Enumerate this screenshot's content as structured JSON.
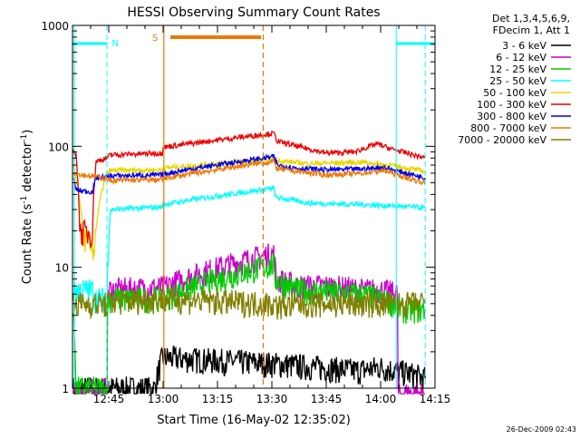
{
  "chart_data": {
    "type": "line",
    "title": "HESSI Observing Summary Count Rates",
    "xlabel": "Start Time (16-May-02 12:35:02)",
    "ylabel_parts": [
      "Count Rate (s",
      "-1",
      " detector",
      "-1",
      ")"
    ],
    "yscale": "log",
    "ylim": [
      1,
      1000
    ],
    "xlim_minutes": [
      0,
      100
    ],
    "x_ticks": [
      {
        "label": "12:45",
        "min": 10
      },
      {
        "label": "13:00",
        "min": 25
      },
      {
        "label": "13:15",
        "min": 40
      },
      {
        "label": "13:30",
        "min": 55
      },
      {
        "label": "13:45",
        "min": 70
      },
      {
        "label": "14:00",
        "min": 85
      },
      {
        "label": "14:15",
        "min": 100
      }
    ],
    "y_ticks": [
      {
        "label": "1",
        "value": 1
      },
      {
        "label": "10",
        "value": 10
      },
      {
        "label": "100",
        "value": 100
      },
      {
        "label": "1000",
        "value": 1000
      }
    ],
    "legend_header": [
      "Det 1,3,4,5,6,9,",
      "FDecim 1, Att 1"
    ],
    "legend_position": "right",
    "series": [
      {
        "name": "3 - 6 keV",
        "color": "#000000",
        "x": [
          0.2,
          5.0,
          9.5,
          22.7,
          24.8,
          55.5,
          79.0,
          84.5,
          94.0,
          97.3
        ],
        "y": [
          1.0,
          1.0,
          1.0,
          1.0,
          1.8,
          1.6,
          1.4,
          1.5,
          1.3,
          1.2
        ]
      },
      {
        "name": "6 - 12 keV",
        "color": "#cc00cc",
        "x": [
          0.2,
          9.5,
          9.8,
          24.8,
          55.5,
          56.2,
          62.0,
          70.0,
          80.0,
          85.0,
          89.6,
          89.8,
          97.3
        ],
        "y": [
          0.9,
          1.0,
          6.5,
          6.8,
          13.0,
          8.0,
          7.0,
          7.0,
          6.5,
          6.5,
          6.0,
          0.9,
          0.9
        ]
      },
      {
        "name": "12 - 25 keV",
        "color": "#00cc00",
        "x": [
          0.2,
          1.0,
          9.5,
          9.8,
          24.8,
          55.5,
          56.0,
          62.0,
          80.0,
          89.0,
          90.0,
          97.3
        ],
        "y": [
          4.0,
          1.0,
          1.0,
          5.5,
          5.5,
          10.5,
          8.0,
          6.5,
          6.0,
          5.0,
          4.5,
          4.5
        ]
      },
      {
        "name": "25 - 50 keV",
        "color": "#00ffff",
        "x": [
          0.2,
          5.5,
          6.0,
          9.5,
          10.5,
          24.8,
          25.0,
          55.5,
          56.0,
          65.0,
          80.0,
          90.0,
          97.3
        ],
        "y": [
          6.5,
          6.5,
          5.5,
          5.5,
          30.0,
          31.5,
          33.0,
          45.0,
          38.0,
          34.0,
          33.0,
          32.0,
          31.0
        ]
      },
      {
        "name": "50 - 100 keV",
        "color": "#e8d800",
        "x": [
          0.2,
          3.0,
          5.5,
          6.0,
          9.5,
          10.5,
          24.8,
          25.0,
          55.5,
          56.5,
          65.0,
          80.0,
          90.0,
          97.3
        ],
        "y": [
          68,
          18,
          14.5,
          14.5,
          60,
          63,
          64,
          66,
          78,
          76,
          72,
          74,
          68,
          62
        ]
      },
      {
        "name": "100 - 300 keV",
        "color": "#ee0000",
        "x": [
          0.2,
          1.0,
          2.0,
          5.5,
          6.5,
          9.5,
          10.5,
          24.8,
          25.0,
          55.5,
          56.5,
          62.0,
          70.0,
          78.0,
          84.0,
          88.0,
          94.0,
          97.3
        ],
        "y": [
          92,
          82,
          20,
          19,
          75,
          80,
          85,
          88,
          98,
          128,
          110,
          100,
          88,
          90,
          105,
          95,
          85,
          80
        ]
      },
      {
        "name": "300 - 800 keV",
        "color": "#0000ee",
        "x": [
          0.2,
          1.0,
          2.0,
          5.5,
          6.5,
          9.5,
          10.0,
          24.8,
          25.0,
          55.5,
          56.5,
          62.0,
          70.0,
          80.0,
          86.0,
          90.0,
          97.3
        ],
        "y": [
          55,
          44,
          43,
          42,
          55,
          56,
          57,
          58,
          59,
          82,
          70,
          66,
          64,
          65,
          67,
          62,
          55
        ]
      },
      {
        "name": "800 - 7000 keV",
        "color": "#ee7700",
        "x": [
          0.2,
          9.5,
          10.0,
          24.8,
          25.0,
          55.5,
          56.5,
          62.0,
          70.0,
          80.0,
          86.0,
          92.0,
          97.3
        ],
        "y": [
          60,
          54,
          52,
          53,
          54,
          75,
          65,
          62,
          58,
          60,
          63,
          55,
          50
        ]
      },
      {
        "name": "7000 - 20000 keV",
        "color": "#808000",
        "x": [
          0.2,
          9.5,
          9.8,
          24.8,
          55.5,
          56.2,
          65.0,
          80.0,
          89.6,
          97.3
        ],
        "y": [
          5.0,
          5.0,
          5.2,
          5.5,
          5.0,
          4.8,
          5.0,
          5.0,
          5.0,
          5.0
        ]
      }
    ],
    "markers": {
      "saa_label": "S",
      "night_label": "N",
      "saa_color": "#ee7700",
      "night_color": "#00ffff",
      "night_bars": [
        [
          0,
          9.5
        ],
        [
          89.3,
          100
        ]
      ],
      "saa_bar": [
        27.0,
        52.0
      ]
    },
    "timestamp": "26-Dec-2009 02:43"
  }
}
